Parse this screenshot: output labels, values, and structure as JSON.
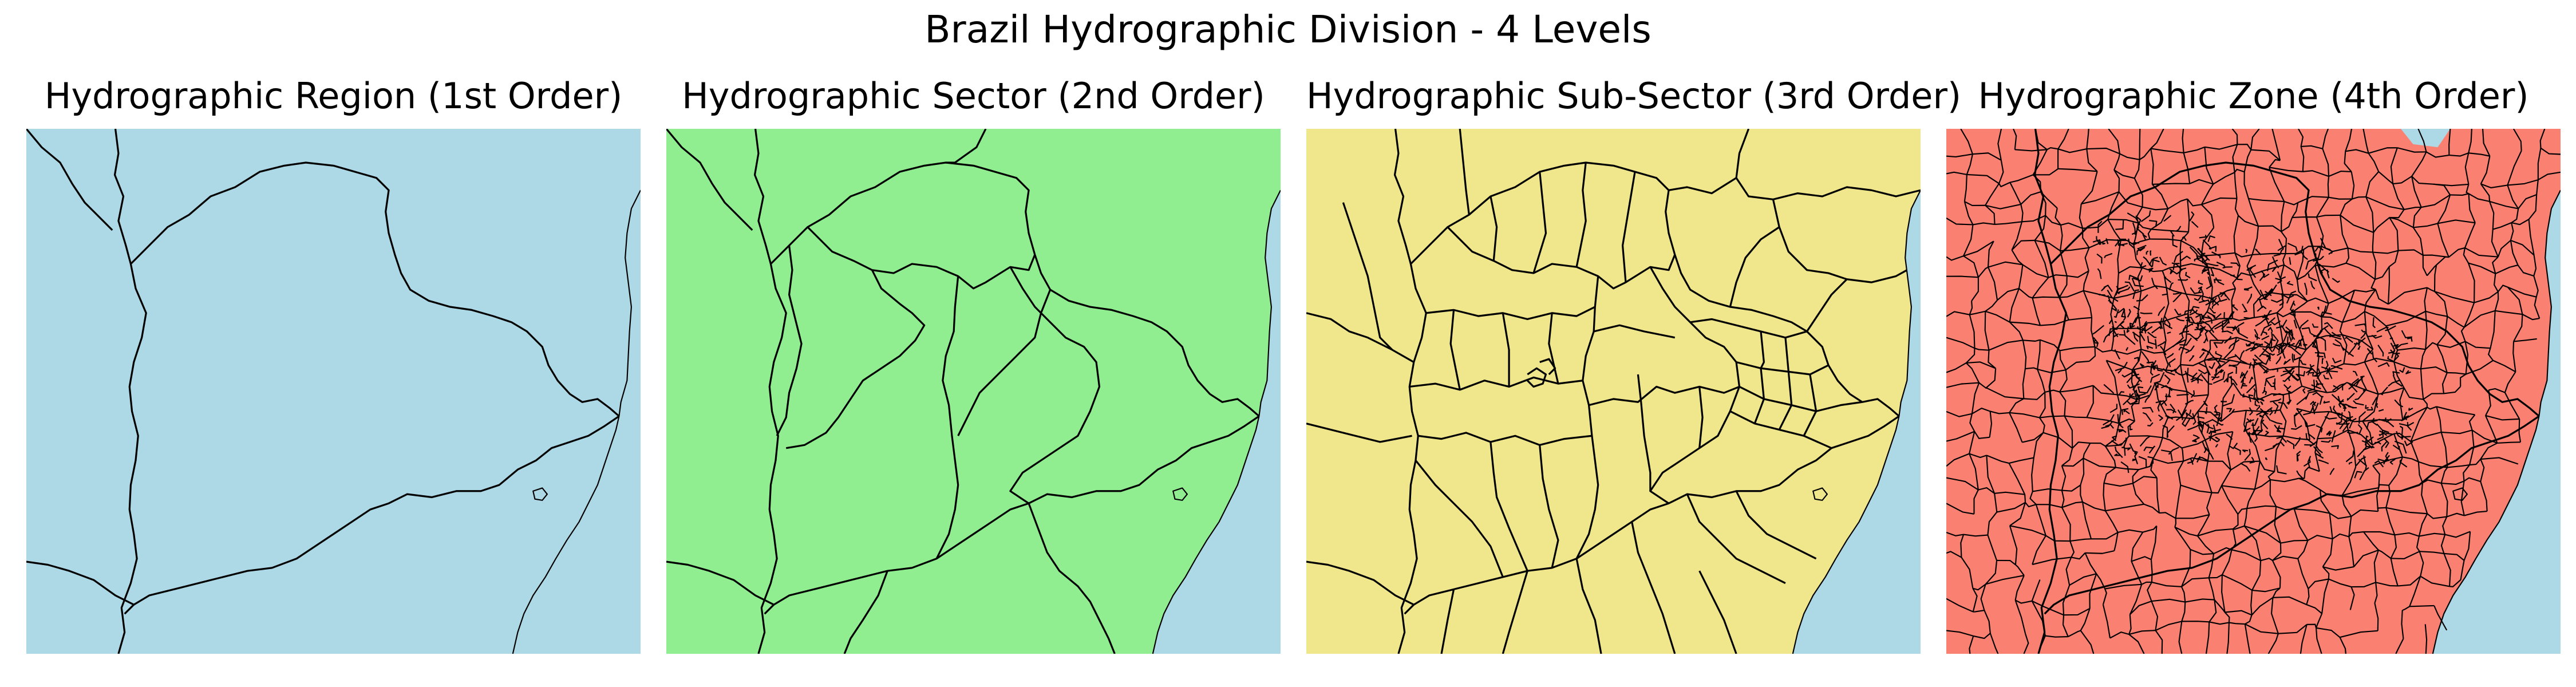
{
  "figure": {
    "title": "Brazil Hydrographic Division - 4 Levels"
  },
  "colors": {
    "ocean": "#add8e6",
    "boundary": "#000000",
    "level1": "#add8e6",
    "level2": "#90ee90",
    "level3": "#f0e68c",
    "level4": "#fa8072"
  },
  "panels": [
    {
      "title": "Hydrographic Region (1st Order)",
      "fill": "#add8e6",
      "level": 1
    },
    {
      "title": "Hydrographic Sector (2nd Order)",
      "fill": "#90ee90",
      "level": 2
    },
    {
      "title": "Hydrographic Sub-Sector (3rd Order)",
      "fill": "#f0e68c",
      "level": 3
    },
    {
      "title": "Hydrographic Zone (4th Order)",
      "fill": "#fa8072",
      "level": 4
    }
  ]
}
